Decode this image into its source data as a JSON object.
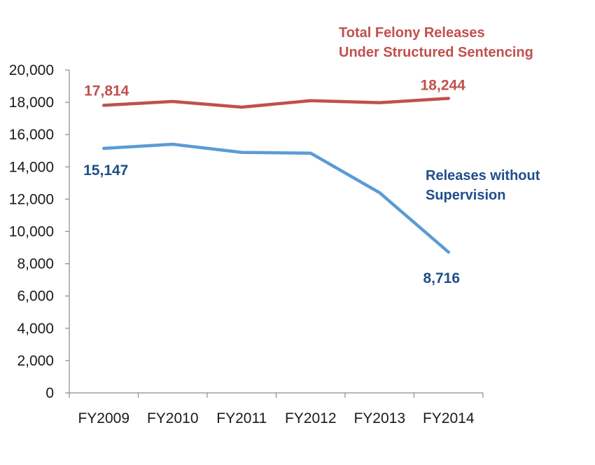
{
  "chart_data": {
    "type": "line",
    "title": "",
    "xlabel": "",
    "ylabel": "",
    "categories": [
      "FY2009",
      "FY2010",
      "FY2011",
      "FY2012",
      "FY2013",
      "FY2014"
    ],
    "ylim": [
      0,
      20000
    ],
    "yticks": [
      0,
      2000,
      4000,
      6000,
      8000,
      10000,
      12000,
      14000,
      16000,
      18000,
      20000
    ],
    "ytick_labels": [
      "0",
      "2,000",
      "4,000",
      "6,000",
      "8,000",
      "10,000",
      "12,000",
      "14,000",
      "16,000",
      "18,000",
      "20,000"
    ],
    "grid": false,
    "legend": "none",
    "series": [
      {
        "name": "Total Felony Releases Under Structured Sentencing",
        "label_lines": [
          "Total Felony Releases",
          "Under Structured Sentencing"
        ],
        "color": "#c0504d",
        "values": [
          17814,
          18050,
          17700,
          18100,
          17980,
          18244
        ],
        "data_labels": [
          {
            "index": 0,
            "text": "17,814"
          },
          {
            "index": 5,
            "text": "18,244"
          }
        ]
      },
      {
        "name": "Releases without Supervision",
        "label_lines": [
          "Releases without",
          "Supervision"
        ],
        "color": "#5b9bd5",
        "label_color": "#1f4e8c",
        "values": [
          15147,
          15400,
          14900,
          14850,
          12400,
          8716
        ],
        "data_labels": [
          {
            "index": 0,
            "text": "15,147"
          },
          {
            "index": 5,
            "text": "8,716"
          }
        ]
      }
    ]
  }
}
